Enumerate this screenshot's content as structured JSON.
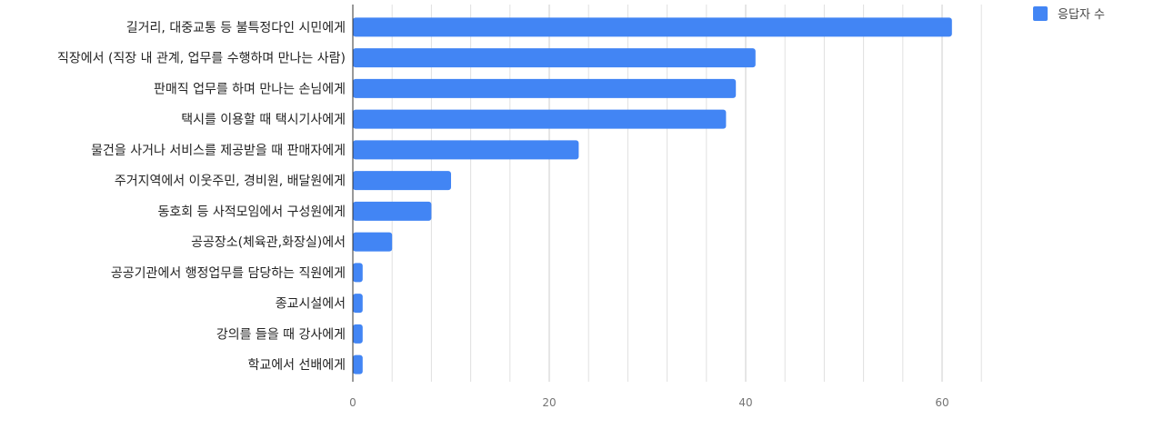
{
  "chart_data": {
    "type": "bar",
    "orientation": "horizontal",
    "categories": [
      "길거리, 대중교통 등 불특정다인 시민에게",
      "직장에서 (직장 내 관계, 업무를 수행하며 만나는 사람)",
      "판매직 업무를 하며 만나는 손님에게",
      "택시를 이용할 때 택시기사에게",
      "물건을 사거나 서비스를 제공받을 때 판매자에게",
      "주거지역에서 이웃주민, 경비원, 배달원에게",
      "동호회 등 사적모임에서 구성원에게",
      "공공장소(체육관,화장실)에서",
      "공공기관에서 행정업무를 담당하는 직원에게",
      "종교시설에서",
      "강의를 들을 때 강사에게",
      "학교에서 선배에게"
    ],
    "series": [
      {
        "name": "응답자 수",
        "values": [
          61,
          41,
          39,
          38,
          23,
          10,
          8,
          4,
          1,
          1,
          1,
          1
        ]
      }
    ],
    "xlim": [
      0,
      64
    ],
    "xticks": [
      "0",
      "20",
      "40",
      "60"
    ],
    "grid": true,
    "legend": "top-right",
    "colors": {
      "bar": "#4285f4",
      "grid": "#e0e0e0",
      "major_grid": "#cccccc",
      "axis": "#333333"
    }
  }
}
